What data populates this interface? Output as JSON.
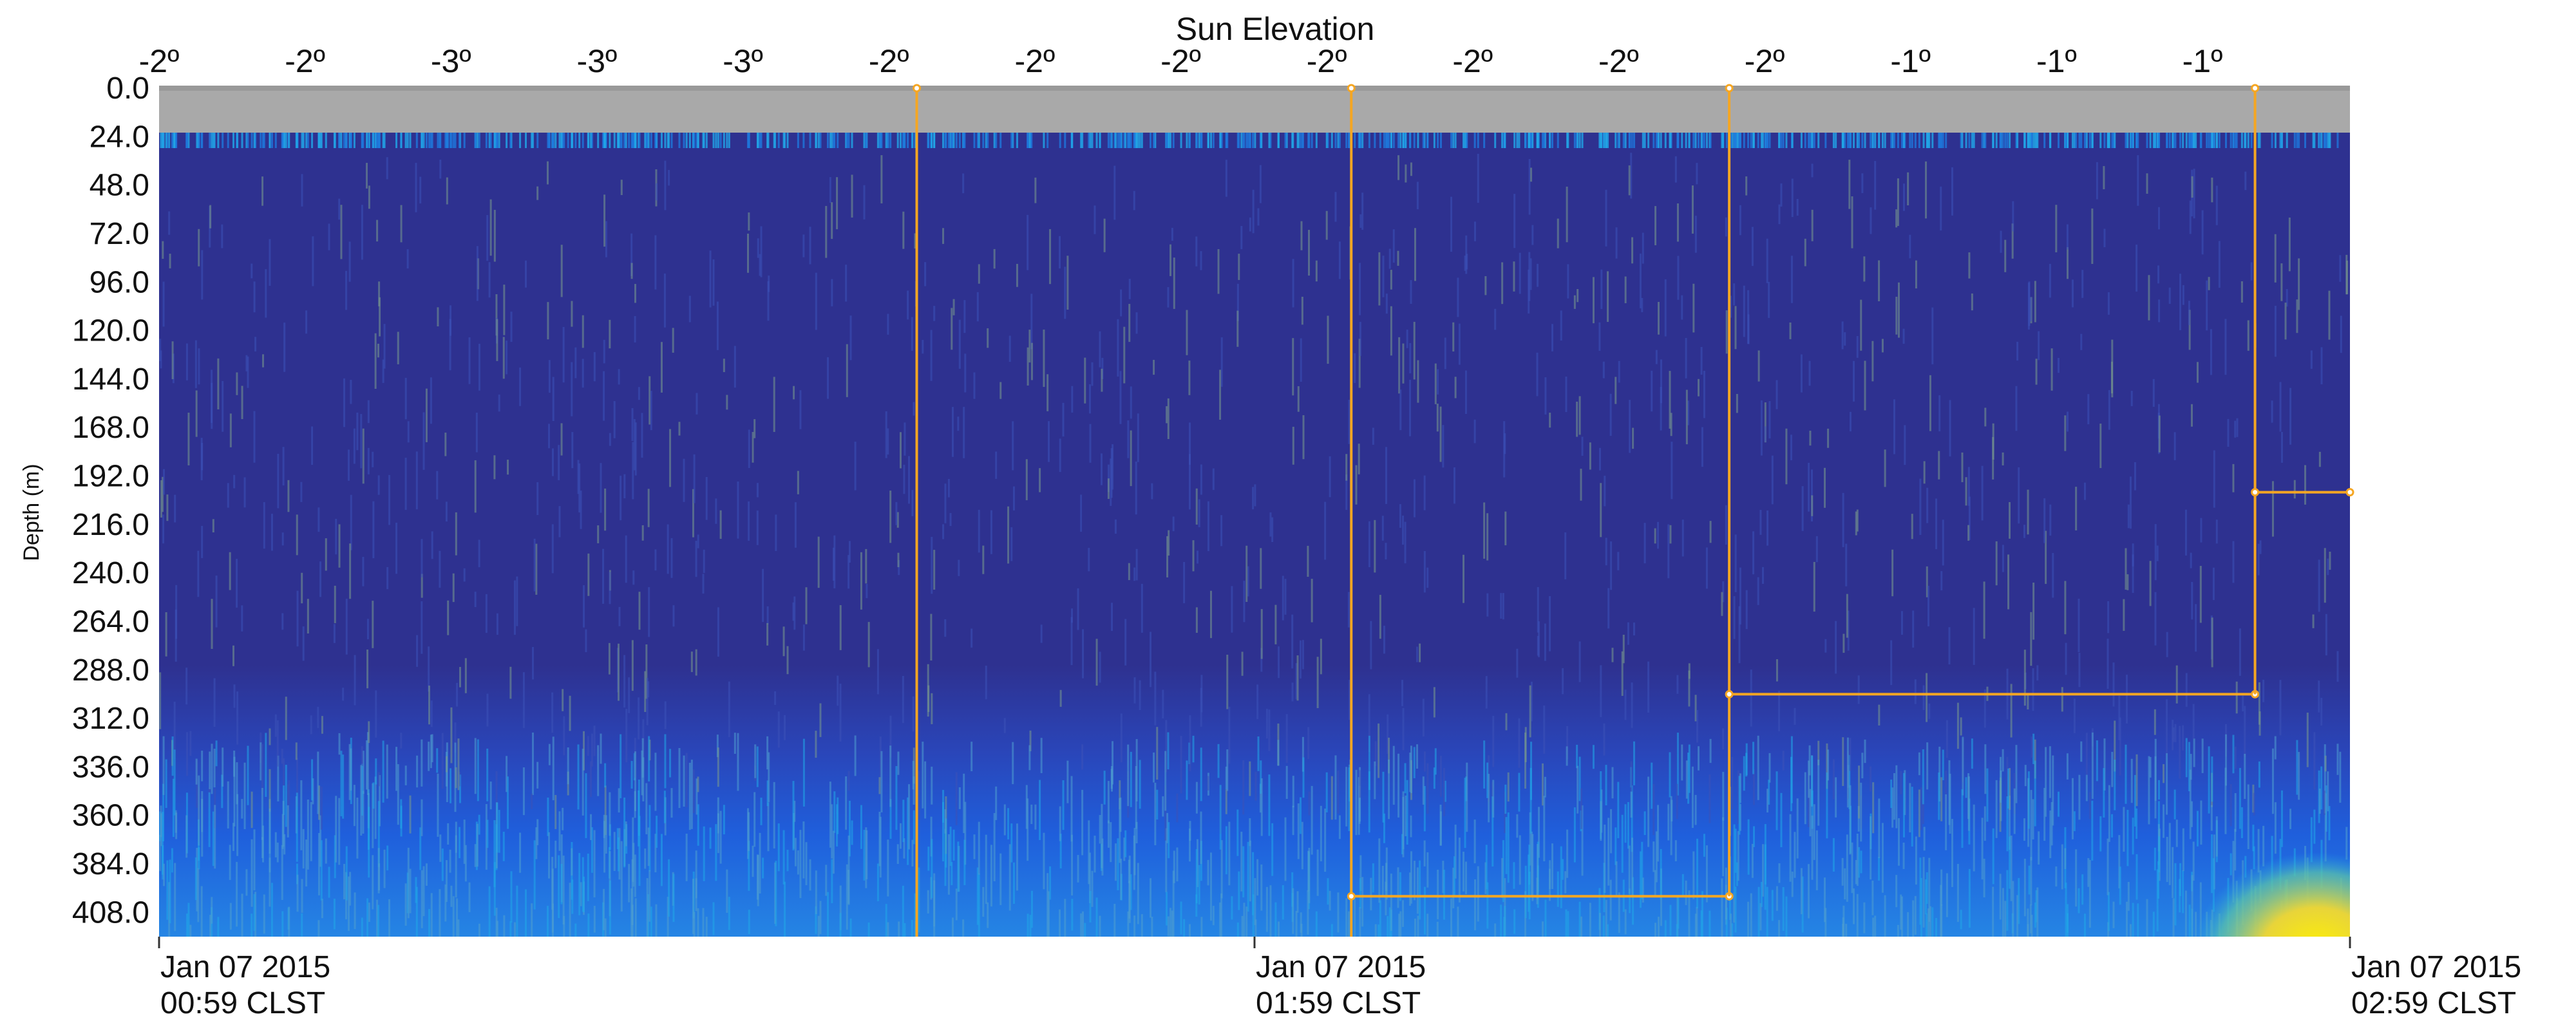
{
  "chart_data": {
    "type": "heatmap",
    "title": "Sun Elevation",
    "ylabel": "Depth (m)",
    "xlabel": "",
    "top_axis_labels": [
      "-2º",
      "-2º",
      "-3º",
      "-3º",
      "-3º",
      "-2º",
      "-2º",
      "-2º",
      "-2º",
      "-2º",
      "-2º",
      "-2º",
      "-1º",
      "-1º",
      "-1º"
    ],
    "y_ticks": [
      0,
      24,
      48,
      72,
      96,
      120,
      144,
      168,
      192,
      216,
      240,
      264,
      288,
      312,
      336,
      360,
      384,
      408
    ],
    "y_tick_labels": [
      "0.0",
      "24.0",
      "48.0",
      "72.0",
      "96.0",
      "120.0",
      "144.0",
      "168.0",
      "192.0",
      "216.0",
      "240.0",
      "264.0",
      "288.0",
      "312.0",
      "336.0",
      "360.0",
      "384.0",
      "408.0"
    ],
    "ylim": [
      0,
      420
    ],
    "y_inverted": true,
    "x_time_range_min": [
      0,
      120
    ],
    "x_ticks": [
      {
        "t": 0,
        "date": "Jan 07 2015",
        "time": "00:59 CLST"
      },
      {
        "t": 60,
        "date": "Jan 07 2015",
        "time": "01:59 CLST"
      },
      {
        "t": 120,
        "date": "Jan 07 2015",
        "time": "02:59 CLST"
      }
    ],
    "no_data_depth_range": [
      0,
      22
    ],
    "colorscale": [
      "#2e3190",
      "#1e5ad6",
      "#21a7e8",
      "#5dc7a8",
      "#f5e31a"
    ],
    "annotation_color": "#f5a623",
    "annotations": [
      {
        "t": 41.5,
        "depth_top": 0,
        "depth_bottom": 420
      },
      {
        "t": 65.3,
        "depth_top": 0,
        "depth_bottom": 420,
        "t_end": 86,
        "depth_end": 400
      },
      {
        "t": 86,
        "depth_top": 0,
        "depth_bottom": 400,
        "t_end": 114.8,
        "depth_end": 300
      },
      {
        "t": 114.8,
        "depth_top": 0,
        "depth_bottom": 300,
        "t_end": 120,
        "depth_end": 200
      }
    ]
  }
}
